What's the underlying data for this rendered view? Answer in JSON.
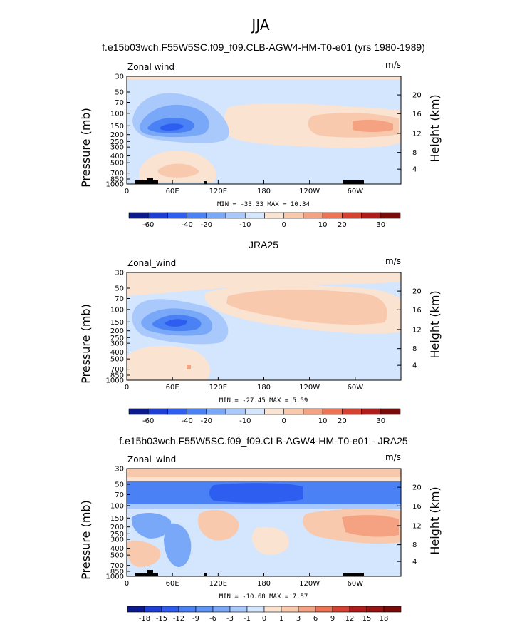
{
  "main_title": "JJA",
  "colors": {
    "wind_scale": [
      "#0a1a8c",
      "#1e3fd6",
      "#2d5ef0",
      "#4a82f5",
      "#7aa8f8",
      "#a9c8fb",
      "#d4e6fd",
      "#fbe3d2",
      "#f9c9ad",
      "#f4a281",
      "#ec7353",
      "#d64130",
      "#b01c1a",
      "#7a0b0b"
    ],
    "terrain": "#000000"
  },
  "chart_data": [
    {
      "type": "contour",
      "title": "f.e15b03wch.F55W5SC.f09_f09.CLB-AGW4-HM-T0-e01 (yrs 1980-1989)",
      "variable": "Zonal wind",
      "units": "m/s",
      "ylabel": "Pressure (mb)",
      "y2label": "Height (km)",
      "x_ticks": [
        "0",
        "60E",
        "120E",
        "180",
        "120W",
        "60W"
      ],
      "y_ticks": [
        "30",
        "50",
        "70",
        "100",
        "150",
        "200",
        "250",
        "300",
        "400",
        "500",
        "700",
        "850",
        "1000"
      ],
      "y2_ticks": [
        "20",
        "16",
        "12",
        "8",
        "4"
      ],
      "min": "-33.33",
      "max": "10.34",
      "minmax_label": "MIN = -33.33   MAX =  10.34",
      "colorbar_labels": [
        "-60",
        "-40",
        "-20",
        "-10",
        "0",
        "10",
        "20",
        "30"
      ],
      "features": [
        {
          "lon": 70,
          "p": 150,
          "value": -33.33
        },
        {
          "lon": 320,
          "p": 150,
          "value": 10.34
        }
      ]
    },
    {
      "type": "contour",
      "title": "JRA25",
      "variable": "Zonal_wind",
      "units": "m/s",
      "ylabel": "Pressure (mb)",
      "y2label": "Height (km)",
      "x_ticks": [
        "0",
        "60E",
        "120E",
        "180",
        "120W",
        "60W"
      ],
      "y_ticks": [
        "30",
        "50",
        "70",
        "100",
        "150",
        "200",
        "250",
        "300",
        "400",
        "500",
        "700",
        "850",
        "1000"
      ],
      "y2_ticks": [
        "20",
        "16",
        "12",
        "8",
        "4"
      ],
      "min": "-27.45",
      "max": "5.59",
      "minmax_label": "MIN = -27.45   MAX =   5.59",
      "colorbar_labels": [
        "-60",
        "-40",
        "-20",
        "-10",
        "0",
        "10",
        "20",
        "30"
      ],
      "features": [
        {
          "lon": 75,
          "p": 150,
          "value": -27.45
        },
        {
          "lon": 300,
          "p": 100,
          "value": 5.59
        }
      ]
    },
    {
      "type": "contour",
      "title": "f.e15b03wch.F55W5SC.f09_f09.CLB-AGW4-HM-T0-e01 - JRA25",
      "variable": "Zonal_wind",
      "units": "m/s",
      "ylabel": "Pressure (mb)",
      "y2label": "Height (km)",
      "x_ticks": [
        "0",
        "60E",
        "120E",
        "180",
        "120W",
        "60W"
      ],
      "y_ticks": [
        "30",
        "50",
        "70",
        "100",
        "150",
        "200",
        "250",
        "300",
        "400",
        "500",
        "700",
        "850",
        "1000"
      ],
      "y2_ticks": [
        "20",
        "16",
        "12",
        "8",
        "4"
      ],
      "min": "-10.68",
      "max": "7.57",
      "minmax_label": "MIN = -10.68   MAX =   7.57",
      "colorbar_labels": [
        "-18",
        "-15",
        "-12",
        "-9",
        "-6",
        "-3",
        "-1",
        "0",
        "1",
        "3",
        "6",
        "9",
        "12",
        "15",
        "18"
      ],
      "features": [
        {
          "lon": 125,
          "p": 60,
          "value": -10.68
        },
        {
          "lon": 320,
          "p": 150,
          "value": 7.57
        }
      ]
    }
  ]
}
